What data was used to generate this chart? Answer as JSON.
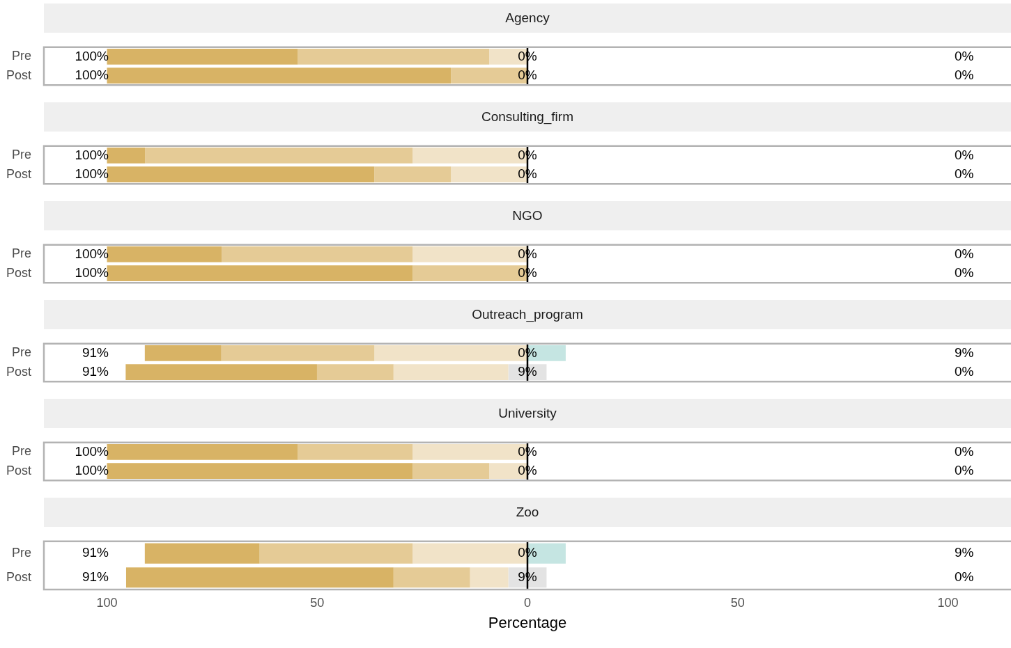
{
  "chart_data": [
    {
      "type": "bar",
      "title": "Agency",
      "orientation": "horizontal",
      "categories": [
        "Pre",
        "Post"
      ],
      "xlim": [
        -115,
        115
      ],
      "tick_labels": "y",
      "legend": false,
      "series": [
        {
          "color": "#d8b365",
          "values": [
            45.4,
            81.8
          ],
          "base": [
            -100,
            -100
          ]
        },
        {
          "color": "#e5cb96",
          "values": [
            45.5,
            18.2
          ],
          "base": [
            -54.6,
            -18.2
          ]
        },
        {
          "color": "#f1e3c8",
          "values": [
            9.1,
            null
          ],
          "base": [
            -9.1,
            null
          ]
        },
        {
          "color": "#e3e3e3",
          "values": [
            null,
            null
          ],
          "base": [
            null,
            null
          ]
        },
        {
          "color": "#c5e5e2",
          "values": [
            null,
            null
          ],
          "base": [
            null,
            null
          ]
        }
      ],
      "ref_lines": [
        {
          "axis": "x",
          "value": 0,
          "color": "#000000"
        }
      ],
      "annotations": [
        "100%",
        "0%",
        "0%",
        "100%",
        "0%",
        "0%"
      ]
    },
    {
      "type": "bar",
      "title": "Consulting_firm",
      "orientation": "horizontal",
      "categories": [
        "Pre",
        "Post"
      ],
      "xlim": [
        -115,
        115
      ],
      "tick_labels": "y",
      "legend": false,
      "series": [
        {
          "color": "#d8b365",
          "values": [
            9.1,
            63.6
          ],
          "base": [
            -100,
            -100
          ]
        },
        {
          "color": "#e5cb96",
          "values": [
            63.6,
            18.2
          ],
          "base": [
            -90.9,
            -36.4
          ]
        },
        {
          "color": "#f1e3c8",
          "values": [
            27.3,
            18.2
          ],
          "base": [
            -27.3,
            -18.2
          ]
        },
        {
          "color": "#e3e3e3",
          "values": [
            null,
            null
          ],
          "base": [
            null,
            null
          ]
        },
        {
          "color": "#c5e5e2",
          "values": [
            null,
            null
          ],
          "base": [
            null,
            null
          ]
        }
      ],
      "ref_lines": [
        {
          "axis": "x",
          "value": 0,
          "color": "#000000"
        }
      ],
      "annotations": [
        "100%",
        "0%",
        "0%",
        "100%",
        "0%",
        "0%"
      ]
    },
    {
      "type": "bar",
      "title": "NGO",
      "orientation": "horizontal",
      "categories": [
        "Pre",
        "Post"
      ],
      "xlim": [
        -115,
        115
      ],
      "tick_labels": "y",
      "legend": false,
      "series": [
        {
          "color": "#d8b365",
          "values": [
            27.3,
            72.7
          ],
          "base": [
            -100,
            -100
          ]
        },
        {
          "color": "#e5cb96",
          "values": [
            45.4,
            27.3
          ],
          "base": [
            -72.7,
            -27.3
          ]
        },
        {
          "color": "#f1e3c8",
          "values": [
            27.3,
            null
          ],
          "base": [
            -27.3,
            null
          ]
        },
        {
          "color": "#e3e3e3",
          "values": [
            null,
            null
          ],
          "base": [
            null,
            null
          ]
        },
        {
          "color": "#c5e5e2",
          "values": [
            null,
            null
          ],
          "base": [
            null,
            null
          ]
        }
      ],
      "ref_lines": [
        {
          "axis": "x",
          "value": 0,
          "color": "#000000"
        }
      ],
      "annotations": [
        "100%",
        "0%",
        "0%",
        "100%",
        "0%",
        "0%"
      ]
    },
    {
      "type": "bar",
      "title": "Outreach_program",
      "orientation": "horizontal",
      "categories": [
        "Pre",
        "Post"
      ],
      "xlim": [
        -115,
        115
      ],
      "tick_labels": "y",
      "legend": false,
      "series": [
        {
          "color": "#d8b365",
          "values": [
            18.2,
            45.5
          ],
          "base": [
            -91,
            -95.55
          ]
        },
        {
          "color": "#e5cb96",
          "values": [
            36.4,
            18.2
          ],
          "base": [
            -72.8,
            -50.05
          ]
        },
        {
          "color": "#f1e3c8",
          "values": [
            36.4,
            27.3
          ],
          "base": [
            -36.4,
            -31.85
          ]
        },
        {
          "color": "#e3e3e3",
          "values": [
            null,
            9.1
          ],
          "base": [
            null,
            -4.55
          ]
        },
        {
          "color": "#c5e5e2",
          "values": [
            9.1,
            null
          ],
          "base": [
            0,
            null
          ]
        }
      ],
      "ref_lines": [
        {
          "axis": "x",
          "value": 0,
          "color": "#000000"
        }
      ],
      "annotations": [
        "91%",
        "0%",
        "9%",
        "91%",
        "9%",
        "0%"
      ]
    },
    {
      "type": "bar",
      "title": "University",
      "orientation": "horizontal",
      "categories": [
        "Pre",
        "Post"
      ],
      "xlim": [
        -115,
        115
      ],
      "tick_labels": "y",
      "legend": false,
      "series": [
        {
          "color": "#d8b365",
          "values": [
            45.4,
            72.7
          ],
          "base": [
            -100,
            -100
          ]
        },
        {
          "color": "#e5cb96",
          "values": [
            27.3,
            18.2
          ],
          "base": [
            -54.6,
            -27.3
          ]
        },
        {
          "color": "#f1e3c8",
          "values": [
            27.3,
            9.1
          ],
          "base": [
            -27.3,
            -9.1
          ]
        },
        {
          "color": "#e3e3e3",
          "values": [
            null,
            null
          ],
          "base": [
            null,
            null
          ]
        },
        {
          "color": "#c5e5e2",
          "values": [
            null,
            null
          ],
          "base": [
            null,
            null
          ]
        }
      ],
      "ref_lines": [
        {
          "axis": "x",
          "value": 0,
          "color": "#000000"
        }
      ],
      "annotations": [
        "100%",
        "0%",
        "0%",
        "100%",
        "0%",
        "0%"
      ]
    },
    {
      "type": "bar",
      "title": "Zoo",
      "orientation": "horizontal",
      "categories": [
        "Pre",
        "Post"
      ],
      "xlim": [
        -115,
        115
      ],
      "xticks": [
        {
          "value": -100,
          "label": "100"
        },
        {
          "value": -50,
          "label": "50"
        },
        0,
        50,
        100
      ],
      "xlabel": "Percentage",
      "legend": false,
      "series": [
        {
          "color": "#d8b365",
          "values": [
            27.3,
            63.6
          ],
          "base": [
            -91,
            -95.45
          ]
        },
        {
          "color": "#e5cb96",
          "values": [
            36.4,
            18.2
          ],
          "base": [
            -63.7,
            -31.85
          ]
        },
        {
          "color": "#f1e3c8",
          "values": [
            27.3,
            9.1
          ],
          "base": [
            -27.3,
            -13.65
          ]
        },
        {
          "color": "#e3e3e3",
          "values": [
            null,
            9.1
          ],
          "base": [
            null,
            -4.55
          ]
        },
        {
          "color": "#c5e5e2",
          "values": [
            9.1,
            null
          ],
          "base": [
            0,
            null
          ]
        }
      ],
      "ref_lines": [
        {
          "axis": "x",
          "value": 0,
          "color": "#000000"
        }
      ],
      "annotations": [
        "91%",
        "0%",
        "9%",
        "91%",
        "9%",
        "0%"
      ]
    }
  ]
}
